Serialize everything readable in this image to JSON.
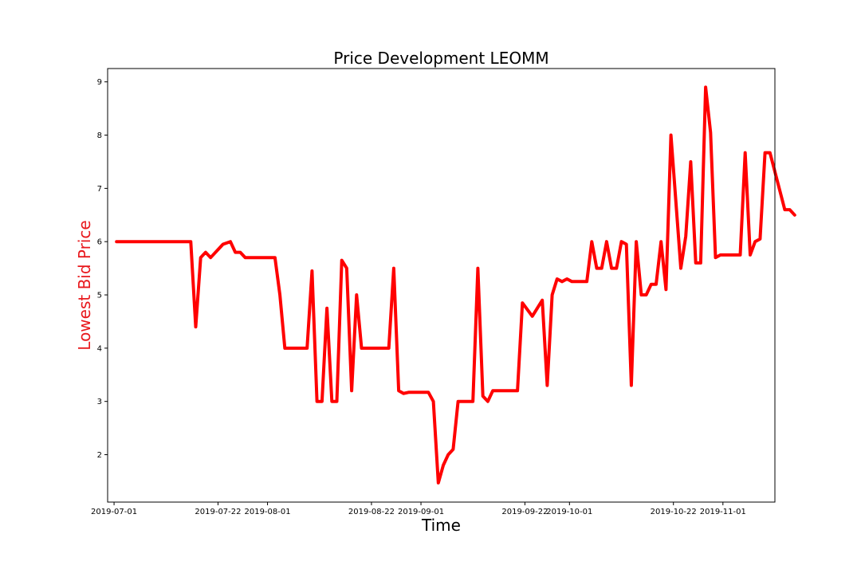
{
  "chart_data": {
    "type": "line",
    "title": "Price Development LEOMM",
    "xlabel": "Time",
    "ylabel": "Lowest Bid Price",
    "ylabel_color": "#e8191d",
    "line_color": "#ff0000",
    "grid": false,
    "x_unit": "days since 2019-07-01",
    "xlim": [
      -1.3,
      133.5
    ],
    "ylim": [
      1.11,
      9.25
    ],
    "x_ticks": [
      {
        "value": 0,
        "label": "2019-07-01"
      },
      {
        "value": 21,
        "label": "2019-07-22"
      },
      {
        "value": 31,
        "label": "2019-08-01"
      },
      {
        "value": 52,
        "label": "2019-08-22"
      },
      {
        "value": 62,
        "label": "2019-09-01"
      },
      {
        "value": 83,
        "label": "2019-09-22"
      },
      {
        "value": 92,
        "label": "2019-10-01"
      },
      {
        "value": 113,
        "label": "2019-10-22"
      },
      {
        "value": 123,
        "label": "2019-11-01"
      }
    ],
    "y_ticks": [
      {
        "value": 2,
        "label": "2"
      },
      {
        "value": 3,
        "label": "3"
      },
      {
        "value": 4,
        "label": "4"
      },
      {
        "value": 5,
        "label": "5"
      },
      {
        "value": 6,
        "label": "6"
      },
      {
        "value": 7,
        "label": "7"
      },
      {
        "value": 8,
        "label": "8"
      },
      {
        "value": 9,
        "label": "9"
      }
    ],
    "series": [
      {
        "name": "Lowest Bid Price",
        "points": [
          [
            0.5,
            6.0
          ],
          [
            15.5,
            6.0
          ],
          [
            16.5,
            4.4
          ],
          [
            17.5,
            5.7
          ],
          [
            18.5,
            5.8
          ],
          [
            19.5,
            5.7
          ],
          [
            22.0,
            5.95
          ],
          [
            23.5,
            6.0
          ],
          [
            24.5,
            5.8
          ],
          [
            25.5,
            5.8
          ],
          [
            26.5,
            5.7
          ],
          [
            27.5,
            5.7
          ],
          [
            32.5,
            5.7
          ],
          [
            33.5,
            5.0
          ],
          [
            34.5,
            4.0
          ],
          [
            39.0,
            4.0
          ],
          [
            40.0,
            5.45
          ],
          [
            41.0,
            3.0
          ],
          [
            42.0,
            3.0
          ],
          [
            43.0,
            4.75
          ],
          [
            44.0,
            3.0
          ],
          [
            45.0,
            3.0
          ],
          [
            46.0,
            5.65
          ],
          [
            47.0,
            5.5
          ],
          [
            48.0,
            3.2
          ],
          [
            49.0,
            5.0
          ],
          [
            50.0,
            4.0
          ],
          [
            55.5,
            4.0
          ],
          [
            56.5,
            5.5
          ],
          [
            57.5,
            3.2
          ],
          [
            58.5,
            3.15
          ],
          [
            59.5,
            3.17
          ],
          [
            63.5,
            3.17
          ],
          [
            64.5,
            3.0
          ],
          [
            65.5,
            1.47
          ],
          [
            66.5,
            1.8
          ],
          [
            67.5,
            2.0
          ],
          [
            68.5,
            2.1
          ],
          [
            69.5,
            3.0
          ],
          [
            72.5,
            3.0
          ],
          [
            73.5,
            5.5
          ],
          [
            74.5,
            3.1
          ],
          [
            75.5,
            3.0
          ],
          [
            76.5,
            3.2
          ],
          [
            81.5,
            3.2
          ],
          [
            82.5,
            4.85
          ],
          [
            84.5,
            4.6
          ],
          [
            86.5,
            4.9
          ],
          [
            87.5,
            3.3
          ],
          [
            88.5,
            5.0
          ],
          [
            89.5,
            5.3
          ],
          [
            90.5,
            5.25
          ],
          [
            91.5,
            5.3
          ],
          [
            92.5,
            5.25
          ],
          [
            94.0,
            5.25
          ],
          [
            95.5,
            5.25
          ],
          [
            96.5,
            6.0
          ],
          [
            97.5,
            5.5
          ],
          [
            98.5,
            5.5
          ],
          [
            99.5,
            6.0
          ],
          [
            100.5,
            5.5
          ],
          [
            101.5,
            5.5
          ],
          [
            102.5,
            6.0
          ],
          [
            103.5,
            5.95
          ],
          [
            104.5,
            3.3
          ],
          [
            105.5,
            6.0
          ],
          [
            106.5,
            5.0
          ],
          [
            107.5,
            5.0
          ],
          [
            108.5,
            5.2
          ],
          [
            109.5,
            5.2
          ],
          [
            110.5,
            6.0
          ],
          [
            111.5,
            5.1
          ],
          [
            112.5,
            8.0
          ],
          [
            114.5,
            5.5
          ],
          [
            115.5,
            6.1
          ],
          [
            116.5,
            7.5
          ],
          [
            117.5,
            5.6
          ],
          [
            118.5,
            5.6
          ],
          [
            119.5,
            8.9
          ],
          [
            120.5,
            8.05
          ],
          [
            121.5,
            5.7
          ],
          [
            122.5,
            5.75
          ],
          [
            126.5,
            5.75
          ],
          [
            127.5,
            7.67
          ],
          [
            128.5,
            5.75
          ],
          [
            129.5,
            6.0
          ],
          [
            130.5,
            6.05
          ],
          [
            131.5,
            7.67
          ],
          [
            132.5,
            7.67
          ],
          [
            135.5,
            6.6
          ],
          [
            136.5,
            6.6
          ],
          [
            137.5,
            6.5
          ]
        ]
      }
    ]
  }
}
